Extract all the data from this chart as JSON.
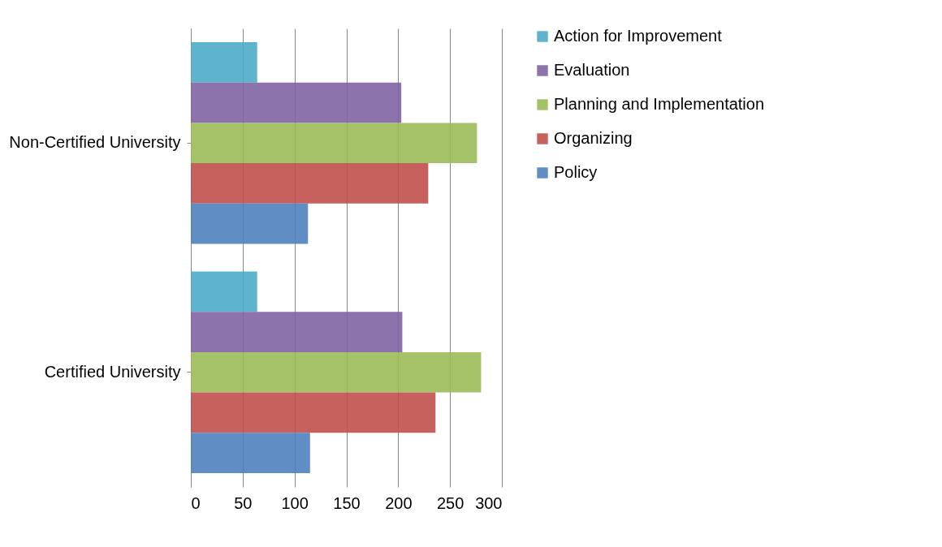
{
  "chart_data": {
    "type": "bar",
    "orientation": "horizontal",
    "categories": [
      "Non-Certified University",
      "Certified University"
    ],
    "series": [
      {
        "name": "Action for Improvement",
        "color": "#4bacc6",
        "values": [
          64,
          64
        ]
      },
      {
        "name": "Evaluation",
        "color": "#8064a2",
        "values": [
          203,
          204
        ]
      },
      {
        "name": "Planning and Implementation",
        "color": "#9bbb59",
        "values": [
          276,
          280
        ]
      },
      {
        "name": "Organizing",
        "color": "#c0504d",
        "values": [
          229,
          236
        ]
      },
      {
        "name": "Policy",
        "color": "#4f81bd",
        "values": [
          113,
          115
        ]
      }
    ],
    "xlim": [
      0,
      300
    ],
    "xticks": [
      0,
      50,
      100,
      150,
      200,
      250,
      300
    ],
    "grid": "x",
    "legend": "right"
  }
}
